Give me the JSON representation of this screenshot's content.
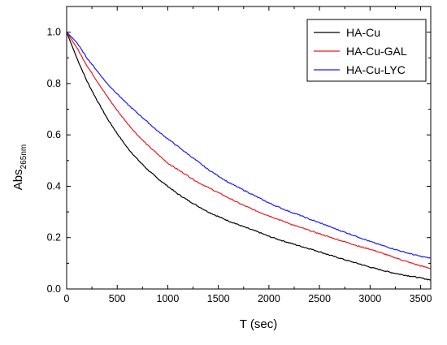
{
  "chart_data": {
    "type": "line",
    "xlabel": "T (sec)",
    "ylabel_main": "Abs",
    "ylabel_sub": "265nm",
    "xlim": [
      0,
      3600
    ],
    "ylim": [
      0,
      1.1
    ],
    "x_ticks": [
      0,
      500,
      1000,
      1500,
      2000,
      2500,
      3000,
      3500
    ],
    "x_tick_labels": [
      "0",
      "500",
      "1000",
      "1500",
      "2000",
      "2500",
      "3000",
      "3500"
    ],
    "y_ticks": [
      0.0,
      0.2,
      0.4,
      0.6,
      0.8,
      1.0
    ],
    "y_tick_labels": [
      "0.0",
      "0.2",
      "0.4",
      "0.6",
      "0.8",
      "1.0"
    ],
    "grid": false,
    "legend_position": "top-right",
    "x": [
      0,
      100,
      200,
      300,
      400,
      500,
      600,
      700,
      800,
      900,
      1000,
      1100,
      1200,
      1300,
      1400,
      1500,
      1600,
      1700,
      1800,
      1900,
      2000,
      2100,
      2200,
      2300,
      2400,
      2500,
      2600,
      2700,
      2800,
      2900,
      3000,
      3100,
      3200,
      3300,
      3400,
      3500,
      3600
    ],
    "series": [
      {
        "name": "HA-Cu",
        "color": "#000000",
        "values": [
          1.0,
          0.9,
          0.81,
          0.735,
          0.665,
          0.605,
          0.55,
          0.505,
          0.465,
          0.43,
          0.4,
          0.37,
          0.345,
          0.322,
          0.3,
          0.282,
          0.265,
          0.25,
          0.235,
          0.221,
          0.205,
          0.192,
          0.18,
          0.168,
          0.157,
          0.145,
          0.132,
          0.12,
          0.108,
          0.097,
          0.085,
          0.075,
          0.065,
          0.057,
          0.05,
          0.043,
          0.035
        ]
      },
      {
        "name": "HA-Cu-GAL",
        "color": "#e8191f",
        "values": [
          1.0,
          0.94,
          0.87,
          0.81,
          0.75,
          0.695,
          0.645,
          0.6,
          0.56,
          0.525,
          0.49,
          0.465,
          0.44,
          0.415,
          0.395,
          0.375,
          0.355,
          0.335,
          0.317,
          0.3,
          0.285,
          0.27,
          0.255,
          0.241,
          0.228,
          0.215,
          0.202,
          0.19,
          0.178,
          0.165,
          0.155,
          0.142,
          0.128,
          0.115,
          0.102,
          0.09,
          0.08
        ]
      },
      {
        "name": "HA-Cu-LYC",
        "color": "#1a1aff",
        "values": [
          1.0,
          0.96,
          0.9,
          0.85,
          0.8,
          0.76,
          0.72,
          0.685,
          0.65,
          0.615,
          0.585,
          0.555,
          0.525,
          0.495,
          0.465,
          0.44,
          0.415,
          0.395,
          0.375,
          0.355,
          0.335,
          0.318,
          0.302,
          0.288,
          0.272,
          0.258,
          0.243,
          0.228,
          0.214,
          0.2,
          0.185,
          0.172,
          0.16,
          0.148,
          0.137,
          0.127,
          0.12
        ]
      }
    ]
  }
}
